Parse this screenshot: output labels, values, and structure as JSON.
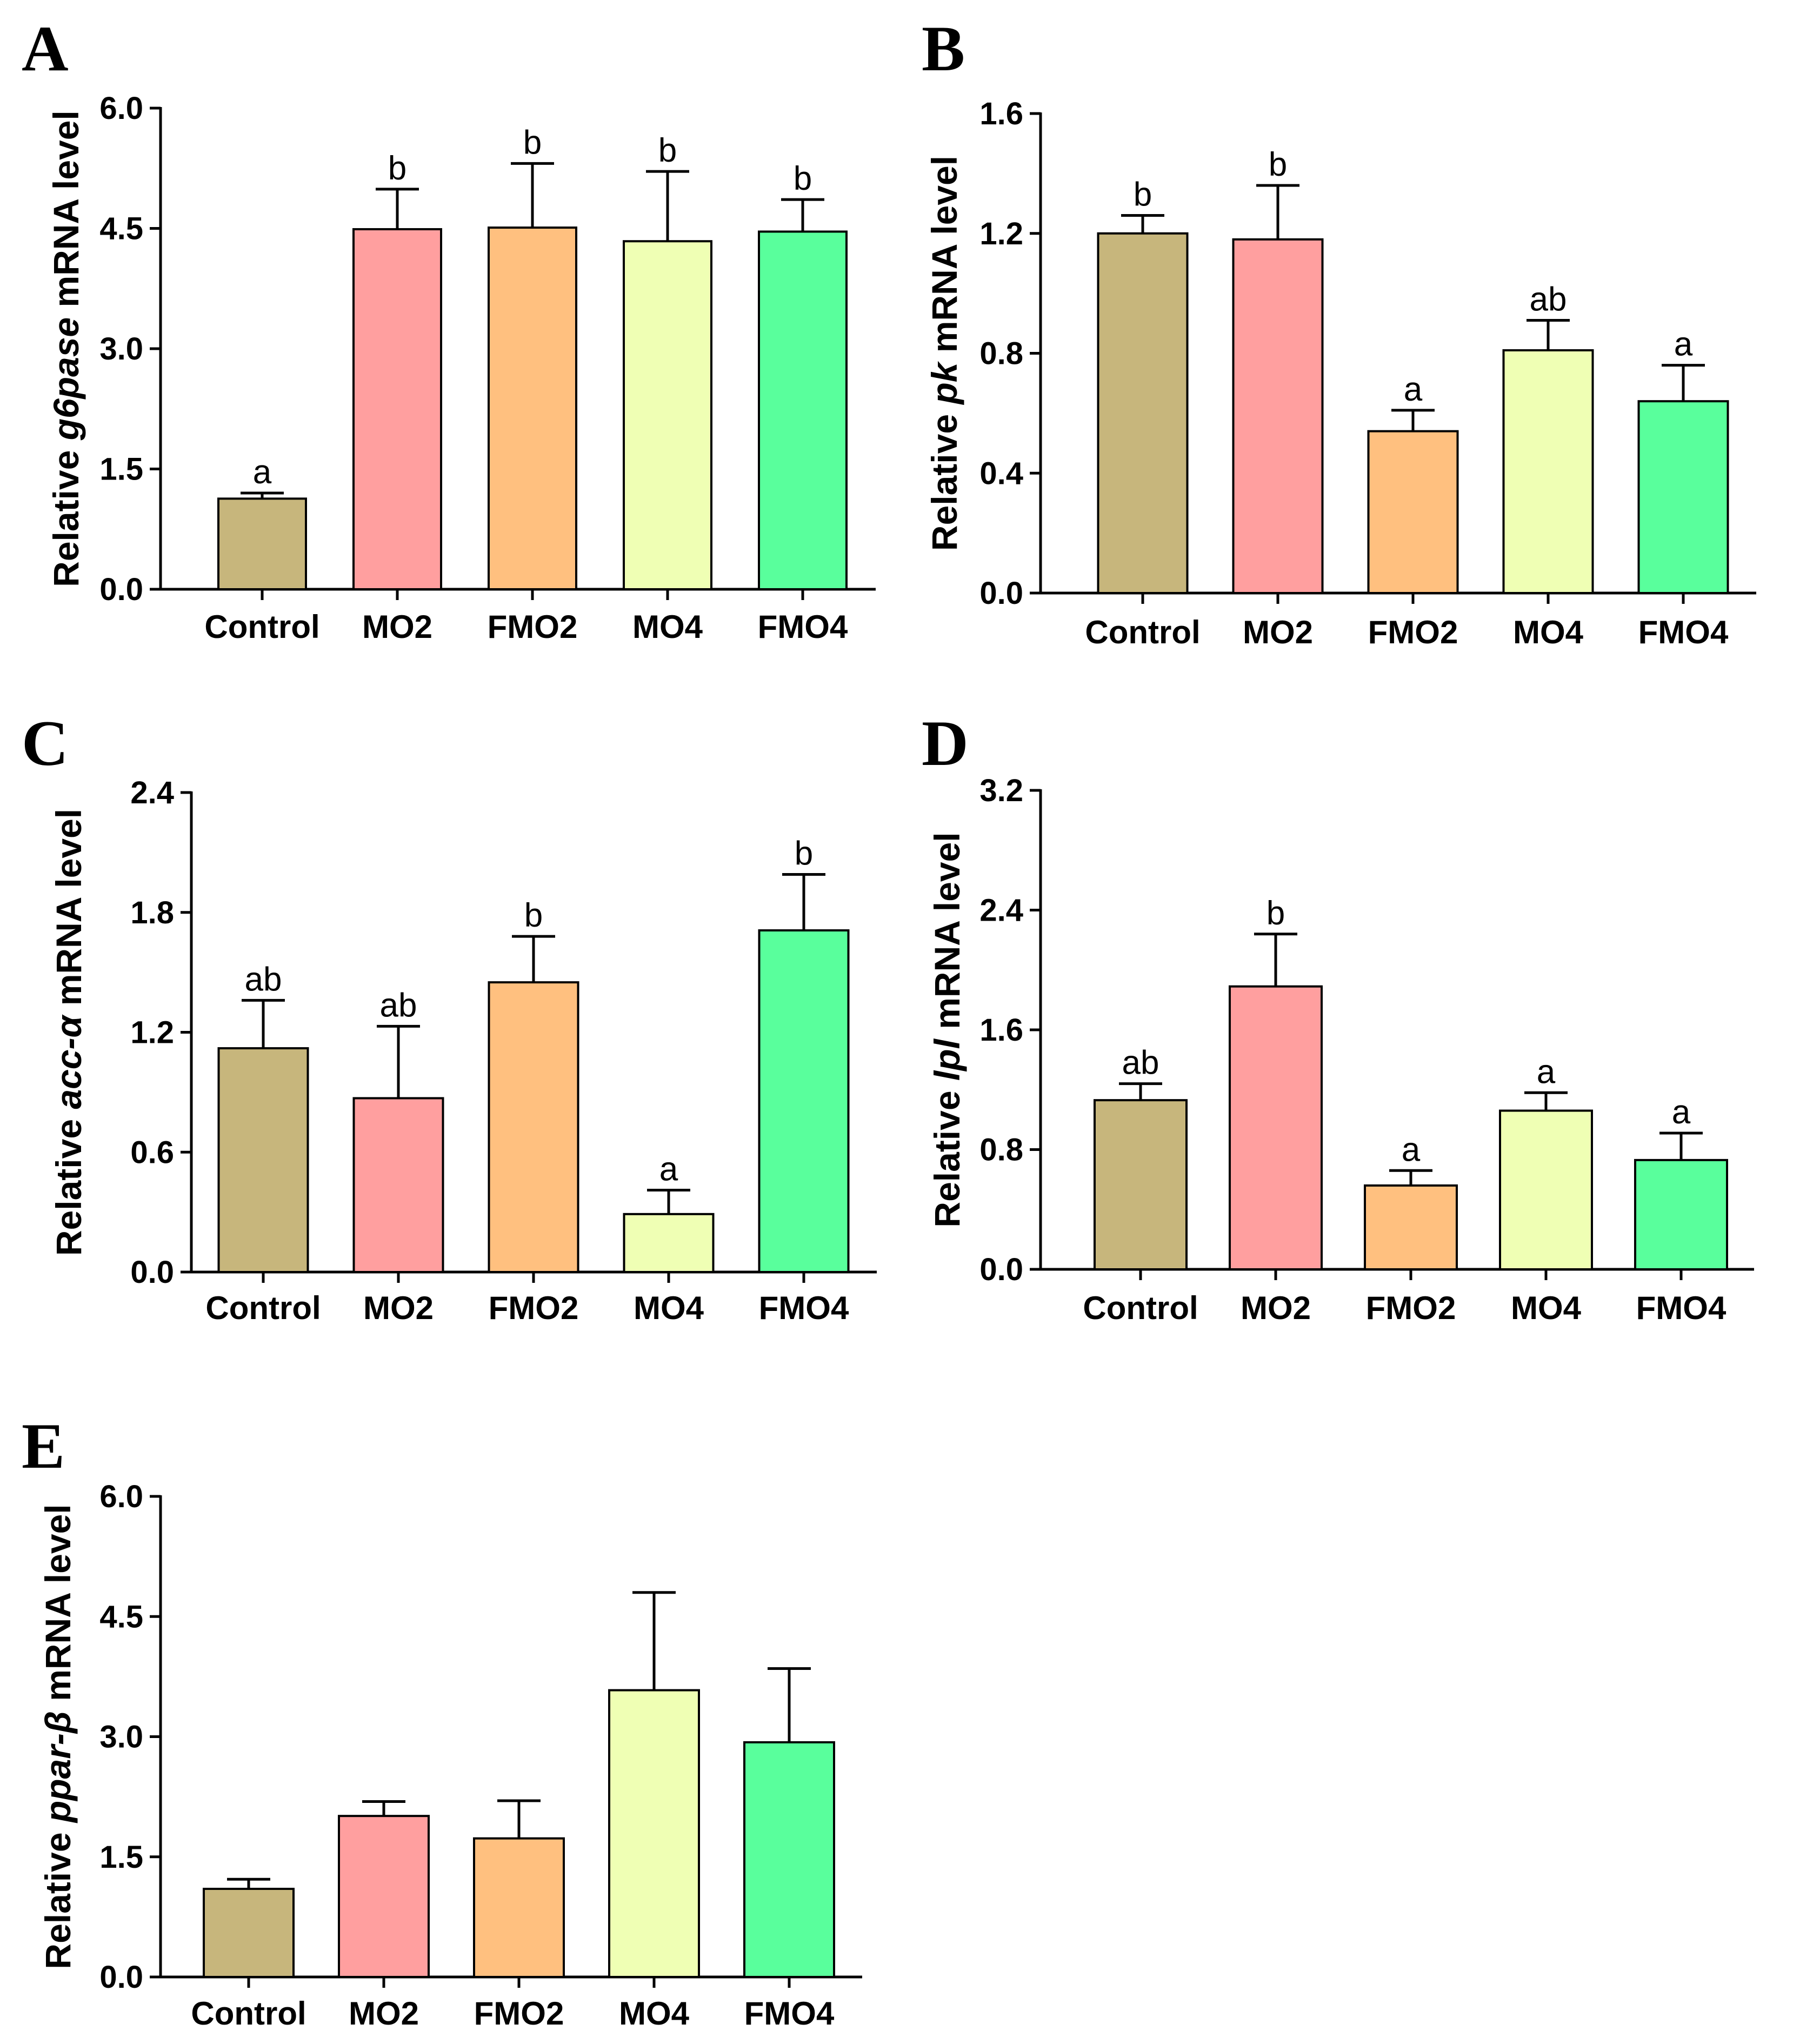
{
  "figure": {
    "panels": [
      "A",
      "B",
      "C",
      "D",
      "E"
    ]
  },
  "chart_data": [
    {
      "panel": "A",
      "type": "bar",
      "title": "",
      "ylabel_prefix": "Relative ",
      "ylabel_gene": "g6pase",
      "ylabel_suffix": " mRNA level",
      "categories": [
        "Control",
        "MO2",
        "FMO2",
        "MO4",
        "FMO4"
      ],
      "values": [
        1.13,
        4.49,
        4.51,
        4.34,
        4.46
      ],
      "errors": [
        0.07,
        0.5,
        0.8,
        0.87,
        0.4
      ],
      "significance": [
        "a",
        "b",
        "b",
        "b",
        "b"
      ],
      "colors": [
        "#C7B67C",
        "#FF9F9F",
        "#FFC07F",
        "#EFFFB4",
        "#59FF9C"
      ],
      "ylim": [
        0,
        6.0
      ],
      "yticks": [
        "0.0",
        "1.5",
        "3.0",
        "4.5",
        "6.0"
      ]
    },
    {
      "panel": "B",
      "type": "bar",
      "title": "",
      "ylabel_prefix": "Relative ",
      "ylabel_gene": "pk",
      "ylabel_suffix": " mRNA level",
      "categories": [
        "Control",
        "MO2",
        "FMO2",
        "MO4",
        "FMO4"
      ],
      "values": [
        1.2,
        1.18,
        0.54,
        0.81,
        0.64
      ],
      "errors": [
        0.06,
        0.18,
        0.07,
        0.1,
        0.12
      ],
      "significance": [
        "b",
        "b",
        "a",
        "ab",
        "a"
      ],
      "colors": [
        "#C7B67C",
        "#FF9F9F",
        "#FFC07F",
        "#EFFFB4",
        "#59FF9C"
      ],
      "ylim": [
        0,
        1.6
      ],
      "yticks": [
        "0.0",
        "0.4",
        "0.8",
        "1.2",
        "1.6"
      ]
    },
    {
      "panel": "C",
      "type": "bar",
      "title": "",
      "ylabel_prefix": "Relative ",
      "ylabel_gene": "acc-α",
      "ylabel_suffix": " mRNA level",
      "categories": [
        "Control",
        "MO2",
        "FMO2",
        "MO4",
        "FMO4"
      ],
      "values": [
        1.12,
        0.87,
        1.45,
        0.29,
        1.71
      ],
      "errors": [
        0.24,
        0.36,
        0.23,
        0.12,
        0.28
      ],
      "significance": [
        "ab",
        "ab",
        "b",
        "a",
        "b"
      ],
      "colors": [
        "#C7B67C",
        "#FF9F9F",
        "#FFC07F",
        "#EFFFB4",
        "#59FF9C"
      ],
      "ylim": [
        0,
        2.4
      ],
      "yticks": [
        "0.0",
        "0.6",
        "1.2",
        "1.8",
        "2.4"
      ]
    },
    {
      "panel": "D",
      "type": "bar",
      "title": "",
      "ylabel_prefix": "Relative ",
      "ylabel_gene": "lpl",
      "ylabel_suffix": " mRNA level",
      "categories": [
        "Control",
        "MO2",
        "FMO2",
        "MO4",
        "FMO4"
      ],
      "values": [
        1.13,
        1.89,
        0.56,
        1.06,
        0.73
      ],
      "errors": [
        0.11,
        0.35,
        0.1,
        0.12,
        0.18
      ],
      "significance": [
        "ab",
        "b",
        "a",
        "a",
        "a"
      ],
      "colors": [
        "#C7B67C",
        "#FF9F9F",
        "#FFC07F",
        "#EFFFB4",
        "#59FF9C"
      ],
      "ylim": [
        0,
        3.2
      ],
      "yticks": [
        "0.0",
        "0.8",
        "1.6",
        "2.4",
        "3.2"
      ]
    },
    {
      "panel": "E",
      "type": "bar",
      "title": "",
      "ylabel_prefix": "Relative ",
      "ylabel_gene": "ppar-β",
      "ylabel_suffix": " mRNA level",
      "categories": [
        "Control",
        "MO2",
        "FMO2",
        "MO4",
        "FMO4"
      ],
      "values": [
        1.1,
        2.01,
        1.73,
        3.58,
        2.93
      ],
      "errors": [
        0.12,
        0.18,
        0.47,
        1.22,
        0.92
      ],
      "significance": [
        "",
        "",
        "",
        "",
        ""
      ],
      "colors": [
        "#C7B67C",
        "#FF9F9F",
        "#FFC07F",
        "#EFFFB4",
        "#59FF9C"
      ],
      "ylim": [
        0,
        6.0
      ],
      "yticks": [
        "0.0",
        "1.5",
        "3.0",
        "4.5",
        "6.0"
      ]
    }
  ]
}
